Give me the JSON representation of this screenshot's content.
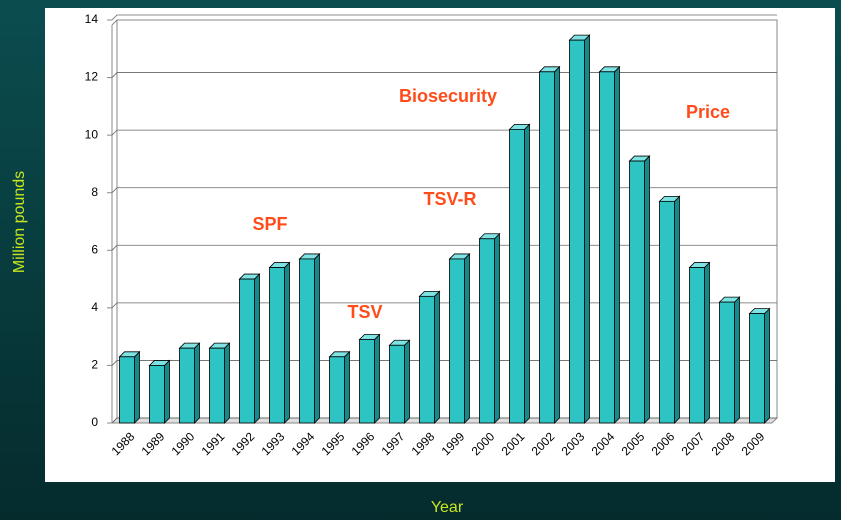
{
  "chart_data": {
    "type": "bar",
    "xlabel": "Year",
    "ylabel": "Million pounds",
    "categories": [
      "1988",
      "1989",
      "1990",
      "1991",
      "1992",
      "1993",
      "1994",
      "1995",
      "1996",
      "1997",
      "1998",
      "1999",
      "2000",
      "2001",
      "2002",
      "2003",
      "2004",
      "2005",
      "2006",
      "2007",
      "2008",
      "2009"
    ],
    "values": [
      2.3,
      2.0,
      2.6,
      2.6,
      5.0,
      5.4,
      5.7,
      2.3,
      2.9,
      2.7,
      4.4,
      5.7,
      6.4,
      10.2,
      12.2,
      13.3,
      12.2,
      9.1,
      7.7,
      5.4,
      4.2,
      3.8
    ],
    "color": "#2ec4c4",
    "ylim": [
      0,
      14
    ],
    "yticks": [
      0,
      2,
      4,
      6,
      8,
      10,
      12,
      14
    ],
    "grid": true,
    "annotations": [
      "SPF",
      "TSV",
      "TSV-R",
      "Biosecurity",
      "Price"
    ]
  }
}
